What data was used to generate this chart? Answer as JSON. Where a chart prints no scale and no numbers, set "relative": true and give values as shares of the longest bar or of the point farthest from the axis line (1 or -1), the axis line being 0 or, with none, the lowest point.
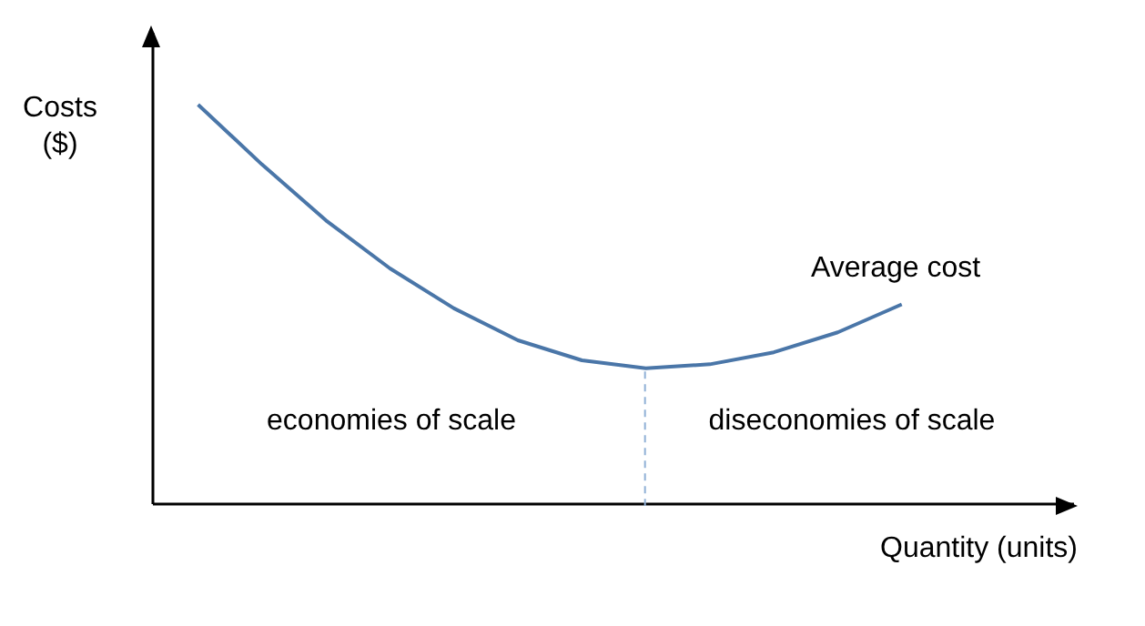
{
  "chart_data": {
    "type": "line",
    "relative": true,
    "xlabel": "Quantity (units)",
    "ylabel": "Costs ($)",
    "tick_labels": false,
    "marker": "none",
    "line_style": "solid",
    "categories": [
      null,
      null,
      null,
      null,
      null,
      null,
      null,
      null,
      null,
      null,
      null,
      null
    ],
    "series": [
      {
        "name": "Average cost",
        "color": "#4a76a8",
        "values": [
          1,
          0.85,
          0.71,
          0.59,
          0.49,
          0.41,
          0.36,
          0.34,
          0.35,
          0.38,
          0.43,
          0.5
        ]
      }
    ],
    "annotations": [
      "economies of scale",
      "diseconomies of scale"
    ]
  }
}
